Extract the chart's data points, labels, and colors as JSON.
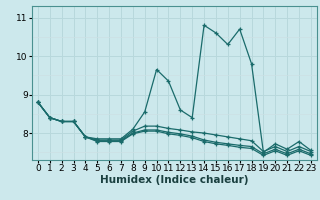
{
  "xlabel": "Humidex (Indice chaleur)",
  "bg_color": "#cce8ec",
  "grid_color_major": "#b8d8dc",
  "grid_color_minor": "#cce0e4",
  "line_color": "#1a6b6b",
  "x_data": [
    0,
    1,
    2,
    3,
    4,
    5,
    6,
    7,
    8,
    9,
    10,
    11,
    12,
    13,
    14,
    15,
    16,
    17,
    18,
    19,
    20,
    21,
    22,
    23
  ],
  "lines": [
    [
      8.8,
      8.4,
      8.3,
      8.3,
      7.9,
      7.85,
      7.85,
      7.85,
      8.1,
      8.55,
      9.65,
      9.35,
      8.6,
      8.4,
      10.8,
      10.6,
      10.3,
      10.7,
      9.8,
      7.5,
      7.72,
      7.58,
      7.78,
      7.55
    ],
    [
      8.8,
      8.4,
      8.3,
      8.3,
      7.9,
      7.82,
      7.82,
      7.82,
      8.05,
      8.18,
      8.18,
      8.12,
      8.08,
      8.03,
      8.0,
      7.95,
      7.9,
      7.85,
      7.8,
      7.52,
      7.65,
      7.52,
      7.65,
      7.52
    ],
    [
      8.8,
      8.4,
      8.3,
      8.3,
      7.9,
      7.8,
      7.8,
      7.8,
      8.0,
      8.08,
      8.08,
      8.02,
      7.98,
      7.92,
      7.82,
      7.76,
      7.72,
      7.68,
      7.65,
      7.46,
      7.58,
      7.46,
      7.58,
      7.46
    ],
    [
      8.8,
      8.4,
      8.3,
      8.3,
      7.9,
      7.78,
      7.78,
      7.78,
      7.98,
      8.05,
      8.05,
      7.98,
      7.94,
      7.88,
      7.78,
      7.72,
      7.68,
      7.63,
      7.6,
      7.42,
      7.54,
      7.42,
      7.54,
      7.42
    ]
  ],
  "ylim": [
    7.3,
    11.3
  ],
  "xlim": [
    -0.5,
    23.5
  ],
  "yticks": [
    8,
    9,
    10,
    11
  ],
  "xticks": [
    0,
    1,
    2,
    3,
    4,
    5,
    6,
    7,
    8,
    9,
    10,
    11,
    12,
    13,
    14,
    15,
    16,
    17,
    18,
    19,
    20,
    21,
    22,
    23
  ],
  "line_width": 0.9,
  "marker": "+",
  "marker_size": 3.5,
  "marker_edge_width": 0.9,
  "xlabel_fontsize": 7.5,
  "tick_fontsize": 6.5
}
